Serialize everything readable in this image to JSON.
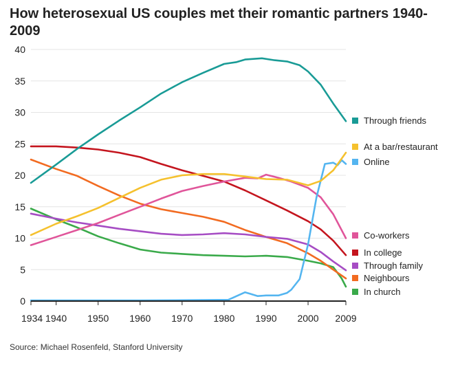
{
  "chart_data": {
    "type": "line",
    "title": "How heterosexual US couples met their romantic partners 1940-2009",
    "source": "Source: Michael Rosenfeld, Stanford University",
    "xlabel": "",
    "ylabel": "",
    "xlim": [
      1934,
      2009
    ],
    "ylim": [
      0,
      40
    ],
    "x_ticks": [
      "1934",
      "1940",
      "1950",
      "1960",
      "1970",
      "1980",
      "1990",
      "2000",
      "2009"
    ],
    "x_tick_values": [
      1934,
      1940,
      1950,
      1960,
      1970,
      1980,
      1990,
      2000,
      2009
    ],
    "y_ticks": [
      "0",
      "5",
      "10",
      "15",
      "20",
      "25",
      "30",
      "35",
      "40"
    ],
    "y_tick_values": [
      0,
      5,
      10,
      15,
      20,
      25,
      30,
      35,
      40
    ],
    "grid": "horizontal",
    "legend_position": "right",
    "series": [
      {
        "name": "Through friends",
        "color": "#199b96",
        "x": [
          1934,
          1940,
          1945,
          1950,
          1955,
          1960,
          1965,
          1970,
          1975,
          1980,
          1983,
          1985,
          1989,
          1992,
          1995,
          1998,
          2000,
          2003,
          2006,
          2009
        ],
        "y": [
          18.8,
          21.7,
          24.2,
          26.5,
          28.7,
          30.8,
          33.0,
          34.8,
          36.3,
          37.7,
          38.0,
          38.4,
          38.6,
          38.3,
          38.1,
          37.5,
          36.5,
          34.4,
          31.4,
          28.6
        ]
      },
      {
        "name": "At a bar/restaurant",
        "color": "#f5c12e",
        "x": [
          1934,
          1940,
          1945,
          1950,
          1955,
          1960,
          1965,
          1970,
          1975,
          1980,
          1985,
          1990,
          1995,
          2000,
          2003,
          2006,
          2009
        ],
        "y": [
          10.5,
          12.3,
          13.5,
          14.8,
          16.4,
          18.0,
          19.3,
          20.0,
          20.2,
          20.2,
          19.8,
          19.4,
          19.3,
          18.4,
          19.1,
          20.8,
          23.6
        ]
      },
      {
        "name": "Online",
        "color": "#54b5f0",
        "x": [
          1934,
          1960,
          1981,
          1983,
          1985,
          1986,
          1988,
          1990,
          1993,
          1995,
          1996,
          1998,
          2000,
          2002,
          2004,
          2006,
          2007,
          2008,
          2009
        ],
        "y": [
          0.1,
          0.1,
          0.2,
          0.8,
          1.4,
          1.2,
          0.8,
          0.9,
          0.9,
          1.3,
          1.8,
          3.5,
          9.0,
          16.5,
          21.8,
          22.0,
          21.6,
          22.4,
          21.8
        ]
      },
      {
        "name": "Co-workers",
        "color": "#e0559a",
        "x": [
          1934,
          1940,
          1945,
          1950,
          1955,
          1960,
          1965,
          1970,
          1975,
          1980,
          1985,
          1988,
          1990,
          1993,
          1996,
          2000,
          2003,
          2006,
          2009
        ],
        "y": [
          8.9,
          10.2,
          11.3,
          12.4,
          13.7,
          15.0,
          16.3,
          17.5,
          18.3,
          19.0,
          19.6,
          19.5,
          20.1,
          19.6,
          19.0,
          18.0,
          16.5,
          13.8,
          10.0
        ]
      },
      {
        "name": "In college",
        "color": "#c4151e",
        "x": [
          1934,
          1940,
          1945,
          1950,
          1955,
          1960,
          1965,
          1970,
          1975,
          1980,
          1985,
          1990,
          1995,
          2000,
          2003,
          2006,
          2009
        ],
        "y": [
          24.6,
          24.6,
          24.4,
          24.1,
          23.6,
          22.9,
          21.8,
          20.8,
          19.9,
          19.0,
          17.6,
          16.0,
          14.4,
          12.7,
          11.4,
          9.6,
          7.3
        ]
      },
      {
        "name": "Through family",
        "color": "#a64dc4",
        "x": [
          1934,
          1940,
          1945,
          1950,
          1955,
          1960,
          1965,
          1970,
          1975,
          1980,
          1985,
          1990,
          1995,
          2000,
          2003,
          2006,
          2009
        ],
        "y": [
          13.9,
          13.1,
          12.5,
          12.0,
          11.5,
          11.1,
          10.7,
          10.5,
          10.6,
          10.8,
          10.6,
          10.2,
          9.9,
          9.0,
          7.8,
          6.3,
          4.9
        ]
      },
      {
        "name": "Neighbours",
        "color": "#f26b21",
        "x": [
          1934,
          1940,
          1945,
          1950,
          1955,
          1960,
          1965,
          1970,
          1975,
          1980,
          1985,
          1990,
          1995,
          2000,
          2003,
          2006,
          2009
        ],
        "y": [
          22.5,
          21.0,
          19.9,
          18.3,
          16.8,
          15.5,
          14.6,
          14.0,
          13.4,
          12.6,
          11.3,
          10.2,
          9.2,
          7.6,
          6.4,
          5.0,
          3.6
        ]
      },
      {
        "name": "In church",
        "color": "#3aaa4a",
        "x": [
          1934,
          1940,
          1945,
          1950,
          1955,
          1960,
          1965,
          1970,
          1975,
          1980,
          1985,
          1990,
          1995,
          2000,
          2003,
          2006,
          2008,
          2009
        ],
        "y": [
          14.7,
          13.0,
          11.7,
          10.3,
          9.2,
          8.2,
          7.7,
          7.5,
          7.3,
          7.2,
          7.1,
          7.2,
          7.0,
          6.4,
          6.0,
          5.4,
          3.6,
          2.3
        ]
      }
    ],
    "legend": [
      {
        "label": "Through friends",
        "color": "#199b96"
      },
      {
        "label": "At a bar/restaurant",
        "color": "#f5c12e"
      },
      {
        "label": "Online",
        "color": "#54b5f0"
      },
      {
        "label": "Co-workers",
        "color": "#e0559a"
      },
      {
        "label": "In college",
        "color": "#c4151e"
      },
      {
        "label": "Through family",
        "color": "#a64dc4"
      },
      {
        "label": "Neighbours",
        "color": "#f26b21"
      },
      {
        "label": "In church",
        "color": "#3aaa4a"
      }
    ],
    "colors": {
      "grid": "#e4e4e4",
      "axis": "#222222",
      "text": "#222222"
    }
  }
}
